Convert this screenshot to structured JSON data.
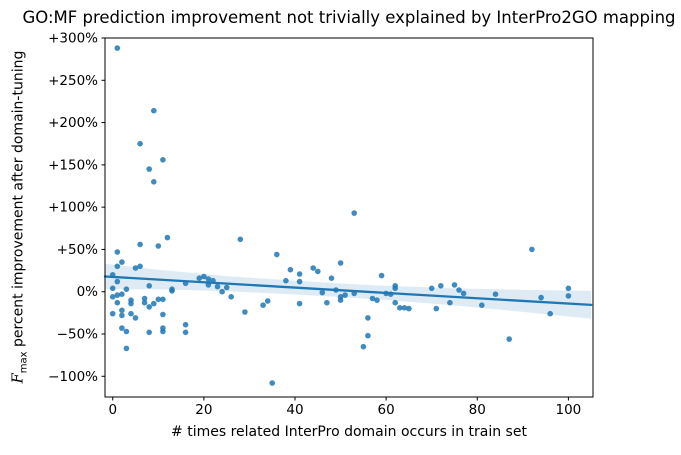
{
  "chart_data": {
    "type": "scatter",
    "title": "GO:MF prediction improvement not trivially explained by InterPro2GO mapping",
    "xlabel": "# times related InterPro domain occurs in train set",
    "ylabel_f": "F",
    "ylabel_sub": "max",
    "ylabel_rest": " percent improvement after domain-tuning",
    "legend": "none",
    "grid": "off",
    "xlim": [
      -1.7,
      105.4
    ],
    "ylim": [
      -124.5,
      300
    ],
    "x_ticks": {
      "values": [
        0,
        20,
        40,
        60,
        80,
        100
      ],
      "labels": [
        "0",
        "20",
        "40",
        "60",
        "80",
        "100"
      ]
    },
    "y_ticks": {
      "values": [
        300,
        250,
        200,
        150,
        100,
        50,
        0,
        -50,
        -100
      ],
      "labels": [
        "+300%",
        "+250%",
        "+200%",
        "+150%",
        "+100%",
        "+50%",
        "0%",
        "−50%",
        "−100%"
      ]
    },
    "colors": {
      "accent": "#1f77b4",
      "point": "#1f77b4",
      "band": "#1f77b4",
      "axis": "#000000"
    },
    "points": [
      [
        1,
        288
      ],
      [
        9,
        214
      ],
      [
        6,
        175
      ],
      [
        11,
        156
      ],
      [
        8,
        145
      ],
      [
        9,
        130
      ],
      [
        53,
        93
      ],
      [
        12,
        64
      ],
      [
        28,
        62
      ],
      [
        6,
        56
      ],
      [
        10,
        54
      ],
      [
        92,
        50
      ],
      [
        1,
        47
      ],
      [
        36,
        44
      ],
      [
        50,
        34
      ],
      [
        2,
        35
      ],
      [
        1,
        30
      ],
      [
        5,
        28
      ],
      [
        6,
        30
      ],
      [
        39,
        26
      ],
      [
        44,
        28
      ],
      [
        45,
        24
      ],
      [
        41,
        21
      ],
      [
        48,
        16
      ],
      [
        38,
        13
      ],
      [
        41,
        12
      ],
      [
        59,
        19
      ],
      [
        0,
        20
      ],
      [
        1,
        12
      ],
      [
        8,
        7
      ],
      [
        13,
        3
      ],
      [
        16,
        10
      ],
      [
        19,
        16
      ],
      [
        20,
        18
      ],
      [
        21,
        15
      ],
      [
        21,
        8
      ],
      [
        22,
        13
      ],
      [
        23,
        6
      ],
      [
        24,
        0
      ],
      [
        25,
        5
      ],
      [
        13,
        1
      ],
      [
        0,
        4
      ],
      [
        1,
        -4
      ],
      [
        2,
        -3
      ],
      [
        3,
        3
      ],
      [
        4,
        -10
      ],
      [
        4,
        -14
      ],
      [
        7,
        -8
      ],
      [
        8,
        -18
      ],
      [
        2,
        -22
      ],
      [
        4,
        -26
      ],
      [
        11,
        -27
      ],
      [
        11,
        -9
      ],
      [
        0,
        -6
      ],
      [
        1,
        -13
      ],
      [
        5,
        -31
      ],
      [
        9,
        -14
      ],
      [
        7,
        -13
      ],
      [
        10,
        -9
      ],
      [
        2,
        -28
      ],
      [
        0,
        -26
      ],
      [
        3,
        -47
      ],
      [
        8,
        -48
      ],
      [
        11,
        -43
      ],
      [
        11,
        -47
      ],
      [
        16,
        -48
      ],
      [
        16,
        -39
      ],
      [
        3,
        -67
      ],
      [
        2,
        -43
      ],
      [
        26,
        -6
      ],
      [
        34,
        -11
      ],
      [
        33,
        -16
      ],
      [
        41,
        -14
      ],
      [
        29,
        -24
      ],
      [
        47,
        -13
      ],
      [
        50,
        -10
      ],
      [
        46,
        -1
      ],
      [
        49,
        2
      ],
      [
        35,
        -108
      ],
      [
        51,
        -4
      ],
      [
        50,
        -6
      ],
      [
        53,
        -2
      ],
      [
        57,
        -8
      ],
      [
        58,
        -10
      ],
      [
        60,
        -2
      ],
      [
        62,
        7
      ],
      [
        62,
        4
      ],
      [
        61,
        -3
      ],
      [
        62,
        -13
      ],
      [
        63,
        -19
      ],
      [
        64,
        -19
      ],
      [
        65,
        -20
      ],
      [
        56,
        -31
      ],
      [
        56,
        -52
      ],
      [
        55,
        -65
      ],
      [
        70,
        4
      ],
      [
        72,
        7
      ],
      [
        75,
        8
      ],
      [
        76,
        2
      ],
      [
        77,
        -2
      ],
      [
        74,
        -13
      ],
      [
        71,
        -20
      ],
      [
        84,
        -3
      ],
      [
        81,
        -16
      ],
      [
        87,
        -56
      ],
      [
        94,
        -7
      ],
      [
        96,
        -26
      ],
      [
        100,
        4
      ],
      [
        100,
        -5
      ]
    ],
    "regression": {
      "line": {
        "x": [
          -1.7,
          105
        ],
        "y": [
          18.0,
          -15.6
        ]
      },
      "band": {
        "x": [
          -1.7,
          10,
          25,
          40,
          50,
          60,
          75,
          90,
          105
        ],
        "upper": [
          33,
          26,
          18.5,
          13,
          9.7,
          7,
          4,
          2.2,
          1
        ],
        "lower": [
          3,
          2.9,
          0.6,
          -3.3,
          -6.2,
          -9.8,
          -16.2,
          -23.8,
          -32
        ]
      }
    }
  }
}
